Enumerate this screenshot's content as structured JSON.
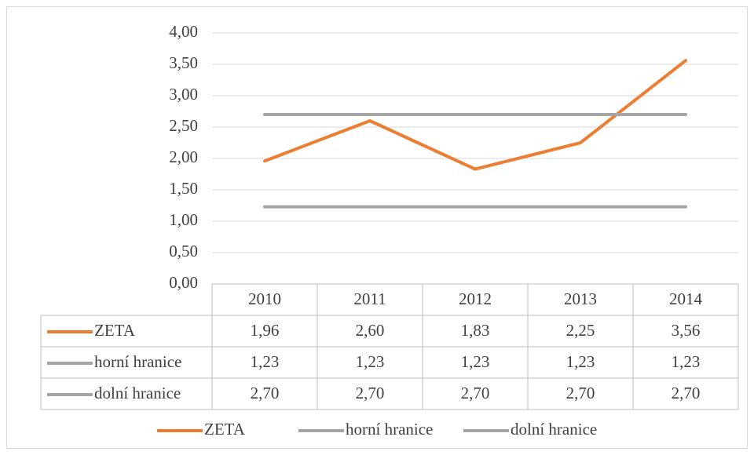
{
  "chart_data": {
    "type": "line",
    "categories": [
      "2010",
      "2011",
      "2012",
      "2013",
      "2014"
    ],
    "series": [
      {
        "name": "ZETA",
        "color": "#ed7d31",
        "values": [
          1.96,
          2.6,
          1.83,
          2.25,
          3.56
        ],
        "value_labels": [
          "1,96",
          "2,60",
          "1,83",
          "2,25",
          "3,56"
        ]
      },
      {
        "name": "horní hranice",
        "color": "#a5a5a5",
        "values": [
          1.23,
          1.23,
          1.23,
          1.23,
          1.23
        ],
        "value_labels": [
          "1,23",
          "1,23",
          "1,23",
          "1,23",
          "1,23"
        ]
      },
      {
        "name": "dolní hranice",
        "color": "#a5a5a5",
        "values": [
          2.7,
          2.7,
          2.7,
          2.7,
          2.7
        ],
        "value_labels": [
          "2,70",
          "2,70",
          "2,70",
          "2,70",
          "2,70"
        ]
      }
    ],
    "ylim": [
      0,
      4
    ],
    "yticks": [
      {
        "value": 0,
        "label": "0,00"
      },
      {
        "value": 0.5,
        "label": "0,50"
      },
      {
        "value": 1,
        "label": "1,00"
      },
      {
        "value": 1.5,
        "label": "1,50"
      },
      {
        "value": 2,
        "label": "2,00"
      },
      {
        "value": 2.5,
        "label": "2,50"
      },
      {
        "value": 3,
        "label": "3,00"
      },
      {
        "value": 3.5,
        "label": "3,50"
      },
      {
        "value": 4,
        "label": "4,00"
      }
    ],
    "grid": true,
    "data_table": true,
    "legend": "bottom"
  }
}
